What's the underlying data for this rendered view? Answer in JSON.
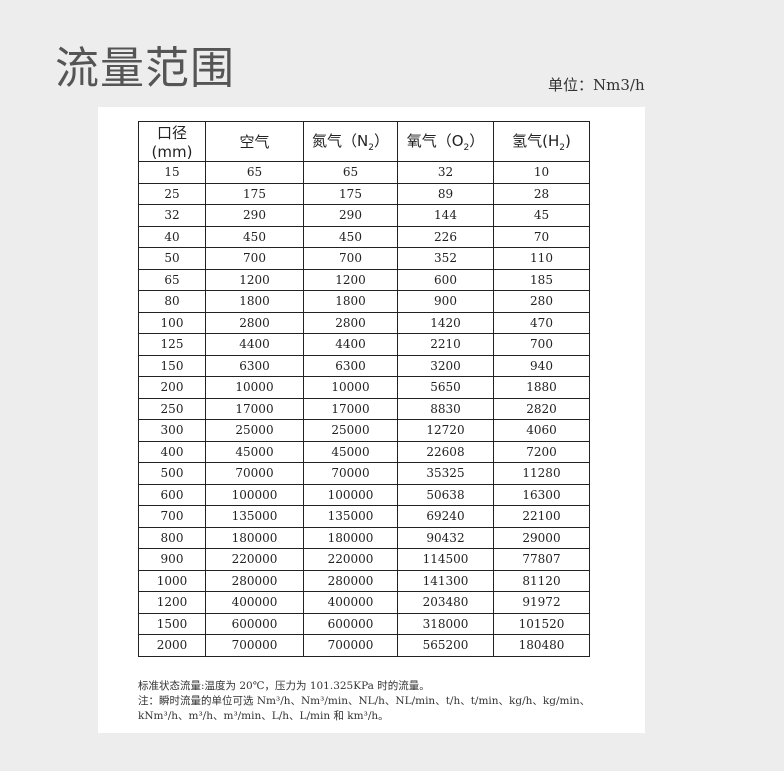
{
  "title": "流量范围",
  "unit": "单位：Nm3/h",
  "table": {
    "headers": [
      {
        "text": "口径(mm)",
        "sub": "",
        "suffix": ""
      },
      {
        "text": "空气",
        "sub": "",
        "suffix": ""
      },
      {
        "text": "氮气（N",
        "sub": "2",
        "suffix": "）"
      },
      {
        "text": "氧气（O",
        "sub": "2",
        "suffix": "）"
      },
      {
        "text": "氢气(H",
        "sub": "2",
        "suffix": ")"
      }
    ],
    "rows": [
      [
        "15",
        "65",
        "65",
        "32",
        "10"
      ],
      [
        "25",
        "175",
        "175",
        "89",
        "28"
      ],
      [
        "32",
        "290",
        "290",
        "144",
        "45"
      ],
      [
        "40",
        "450",
        "450",
        "226",
        "70"
      ],
      [
        "50",
        "700",
        "700",
        "352",
        "110"
      ],
      [
        "65",
        "1200",
        "1200",
        "600",
        "185"
      ],
      [
        "80",
        "1800",
        "1800",
        "900",
        "280"
      ],
      [
        "100",
        "2800",
        "2800",
        "1420",
        "470"
      ],
      [
        "125",
        "4400",
        "4400",
        "2210",
        "700"
      ],
      [
        "150",
        "6300",
        "6300",
        "3200",
        "940"
      ],
      [
        "200",
        "10000",
        "10000",
        "5650",
        "1880"
      ],
      [
        "250",
        "17000",
        "17000",
        "8830",
        "2820"
      ],
      [
        "300",
        "25000",
        "25000",
        "12720",
        "4060"
      ],
      [
        "400",
        "45000",
        "45000",
        "22608",
        "7200"
      ],
      [
        "500",
        "70000",
        "70000",
        "35325",
        "11280"
      ],
      [
        "600",
        "100000",
        "100000",
        "50638",
        "16300"
      ],
      [
        "700",
        "135000",
        "135000",
        "69240",
        "22100"
      ],
      [
        "800",
        "180000",
        "180000",
        "90432",
        "29000"
      ],
      [
        "900",
        "220000",
        "220000",
        "114500",
        "77807"
      ],
      [
        "1000",
        "280000",
        "280000",
        "141300",
        "81120"
      ],
      [
        "1200",
        "400000",
        "400000",
        "203480",
        "91972"
      ],
      [
        "1500",
        "600000",
        "600000",
        "318000",
        "101520"
      ],
      [
        "2000",
        "700000",
        "700000",
        "565200",
        "180480"
      ]
    ]
  },
  "notes": [
    "标准状态流量:温度为 20℃，压力为 101.325KPa 时的流量。",
    "注：瞬时流量的单位可选 Nm³/h、Nm³/min、NL/h、NL/min、t/h、t/min、kg/h、kg/min、",
    "kNm³/h、m³/h、m³/min、L/h、L/min 和 km³/h。"
  ]
}
